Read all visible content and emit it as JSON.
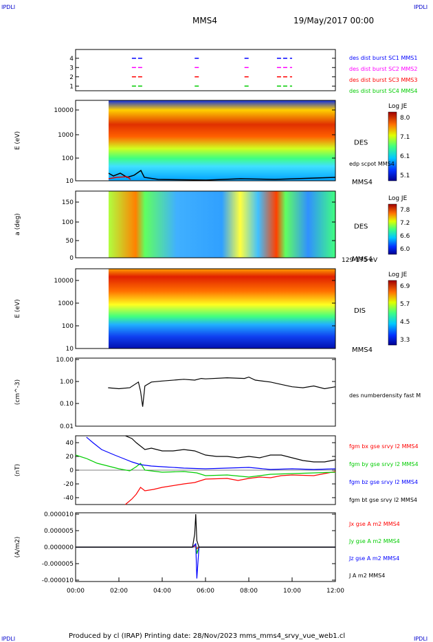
{
  "header": {
    "corner_tl": "IPDLI",
    "corner_tr": "IPDLI",
    "spacecraft": "MMS4",
    "datetime": "19/May/2017 00:00"
  },
  "footer": {
    "text": "Produced by cl (IRAP)   Printing date: 28/Nov/2023   mms_mms4_srvy_vue_web1.cl",
    "corner_bl": "IPDLI",
    "corner_br": "IPDLI"
  },
  "chart_data": [
    {
      "type": "scatter",
      "panel": "burst-availability",
      "yticks": [
        "1",
        "2",
        "3",
        "4"
      ],
      "xlim": [
        "00:00",
        "12:00"
      ],
      "series": [
        {
          "name": "des dist burst SC1 MMS1",
          "level": 4,
          "color": "#0000ff",
          "intervals": [
            [
              2.6,
              3.1
            ],
            [
              5.5,
              5.7
            ],
            [
              7.8,
              8.0
            ],
            [
              9.3,
              9.8
            ],
            [
              9.9,
              10.0
            ]
          ]
        },
        {
          "name": "des dist burst SC2 MMS2",
          "level": 3,
          "color": "#ff00ff",
          "intervals": [
            [
              2.6,
              3.1
            ],
            [
              5.5,
              5.7
            ],
            [
              7.8,
              8.0
            ],
            [
              9.3,
              9.8
            ],
            [
              9.9,
              10.0
            ]
          ]
        },
        {
          "name": "des dist burst SC3 MMS3",
          "level": 2,
          "color": "#ff0000",
          "intervals": [
            [
              2.6,
              3.1
            ],
            [
              5.5,
              5.7
            ],
            [
              7.8,
              8.0
            ],
            [
              9.3,
              9.8
            ],
            [
              9.9,
              10.0
            ]
          ]
        },
        {
          "name": "des dist burst SC4 MMS4",
          "level": 1,
          "color": "#00cc00",
          "intervals": [
            [
              2.6,
              3.1
            ],
            [
              5.5,
              5.7
            ],
            [
              7.8,
              8.0
            ],
            [
              9.3,
              9.8
            ],
            [
              9.9,
              10.0
            ]
          ]
        }
      ]
    },
    {
      "type": "heatmap",
      "panel": "des-energy",
      "ylabel": "E (eV)",
      "yticks": [
        "10000",
        "1000",
        "100",
        "10"
      ],
      "label": "DES",
      "overlay_label": "edp scpot MMS4",
      "sc_label": "MMS4",
      "cbar_title": "Log JE",
      "cbar_ticks": [
        "8.0",
        "7.1",
        "6.1",
        "5.1"
      ],
      "data_start": "01:30"
    },
    {
      "type": "heatmap",
      "panel": "des-pitch-angle",
      "ylabel": "a (deg)",
      "yticks": [
        "150",
        "100",
        "50",
        "0"
      ],
      "label": "DES",
      "sc_label": "MMS4",
      "energy_range": "129-175 eV",
      "cbar_title": "Log JE",
      "cbar_ticks": [
        "7.8",
        "7.2",
        "6.6",
        "6.0"
      ],
      "data_start": "01:30"
    },
    {
      "type": "heatmap",
      "panel": "dis-energy",
      "ylabel": "E (eV)",
      "yticks": [
        "10000",
        "1000",
        "100",
        "10"
      ],
      "label": "DIS",
      "sc_label": "MMS4",
      "cbar_title": "Log JE",
      "cbar_ticks": [
        "6.9",
        "5.7",
        "4.5",
        "3.3"
      ],
      "data_start": "01:30"
    },
    {
      "type": "line",
      "panel": "density",
      "ylabel": "(cm^-3)",
      "yticks": [
        "10.00",
        "1.00",
        "0.10",
        "0.01"
      ],
      "ylim": [
        0.01,
        10
      ],
      "yscale": "log",
      "series": [
        {
          "name": "des numberdensity fast M",
          "color": "#000000",
          "x": [
            1.5,
            2.0,
            2.5,
            2.9,
            3.0,
            3.1,
            3.2,
            3.5,
            4.0,
            5.0,
            5.5,
            5.8,
            6.0,
            7.0,
            7.8,
            8.0,
            8.3,
            9.0,
            9.5,
            10.0,
            10.5,
            11.0,
            11.5,
            12.0
          ],
          "y": [
            0.5,
            0.45,
            0.5,
            0.9,
            0.35,
            0.07,
            0.6,
            0.9,
            1.0,
            1.2,
            1.1,
            1.3,
            1.25,
            1.4,
            1.3,
            1.5,
            1.1,
            0.9,
            0.7,
            0.55,
            0.5,
            0.6,
            0.45,
            0.55
          ]
        }
      ]
    },
    {
      "type": "line",
      "panel": "magnetic-field",
      "ylabel": "(nT)",
      "yticks": [
        "40",
        "20",
        "0",
        "-20",
        "-40"
      ],
      "ylim": [
        -50,
        50
      ],
      "series": [
        {
          "name": "fgm bx gse srvy l2 MMS4",
          "color": "#ff0000",
          "x": [
            2.3,
            2.6,
            2.8,
            3.0,
            3.2,
            3.6,
            4.0,
            5.0,
            5.5,
            6.0,
            7.0,
            7.5,
            8.0,
            8.5,
            9.0,
            9.5,
            10.0,
            11.0,
            12.0
          ],
          "y": [
            -50,
            -42,
            -35,
            -25,
            -30,
            -28,
            -25,
            -20,
            -18,
            -13,
            -12,
            -15,
            -12,
            -10,
            -11,
            -8,
            -7,
            -8,
            -2
          ]
        },
        {
          "name": "fgm by gse srvy l2 MMS4",
          "color": "#00cc00",
          "x": [
            0.0,
            0.5,
            1.0,
            1.5,
            2.0,
            2.5,
            2.8,
            3.0,
            3.2,
            4.0,
            5.0,
            5.6,
            6.0,
            7.0,
            8.0,
            9.0,
            10.0,
            11.0,
            12.0
          ],
          "y": [
            22,
            17,
            10,
            6,
            2,
            -1,
            5,
            10,
            0,
            -3,
            -2,
            -4,
            -8,
            -7,
            -10,
            -6,
            -5,
            -4,
            -3
          ]
        },
        {
          "name": "fgm bz gse srvy l2 MMS4",
          "color": "#0000ff",
          "x": [
            0.5,
            0.8,
            1.2,
            1.8,
            2.2,
            2.6,
            3.0,
            3.5,
            4.0,
            5.0,
            6.0,
            7.0,
            8.0,
            9.0,
            10.0,
            11.0,
            12.0
          ],
          "y": [
            48,
            40,
            30,
            22,
            17,
            12,
            8,
            6,
            5,
            3,
            2,
            3,
            4,
            1,
            2,
            1,
            2
          ]
        },
        {
          "name": "fgm bt gse srvy l2 MMS4",
          "color": "#000000",
          "x": [
            2.3,
            2.6,
            2.8,
            3.0,
            3.2,
            3.5,
            4.0,
            4.5,
            5.0,
            5.5,
            6.0,
            6.5,
            7.0,
            7.5,
            8.0,
            8.5,
            9.0,
            9.5,
            10.0,
            10.5,
            11.0,
            11.5,
            12.0
          ],
          "y": [
            50,
            46,
            40,
            35,
            30,
            32,
            28,
            28,
            30,
            28,
            22,
            20,
            20,
            18,
            20,
            18,
            22,
            22,
            18,
            14,
            12,
            12,
            15
          ]
        }
      ]
    },
    {
      "type": "line",
      "panel": "current-density",
      "ylabel": "(A/m2)",
      "yticks": [
        "0.000010",
        "0.000005",
        "0.000000",
        "-0.000005",
        "-0.000010"
      ],
      "ylim": [
        -1e-05,
        1e-05
      ],
      "xticks": [
        "00:00",
        "02:00",
        "04:00",
        "06:00",
        "08:00",
        "10:00",
        "12:00"
      ],
      "series": [
        {
          "name": "Jx gse A m2 MMS4",
          "color": "#ff0000",
          "x": [
            0,
            5.4,
            5.55,
            5.6,
            5.7,
            12
          ],
          "y": [
            0,
            0,
            5e-07,
            -5e-07,
            0,
            0
          ]
        },
        {
          "name": "Jy gse A m2 MMS4",
          "color": "#00cc00",
          "x": [
            0,
            5.4,
            5.55,
            5.6,
            5.7,
            12
          ],
          "y": [
            0,
            0,
            1e-06,
            -2e-06,
            0,
            0
          ]
        },
        {
          "name": "Jz gse A m2 MMS4",
          "color": "#0000ff",
          "x": [
            0,
            5.4,
            5.55,
            5.6,
            5.7,
            12
          ],
          "y": [
            0,
            0,
            1e-06,
            -9.5e-06,
            0,
            0
          ]
        },
        {
          "name": "J A m2 MMS4",
          "color": "#000000",
          "x": [
            0,
            5.4,
            5.5,
            5.55,
            5.6,
            5.7,
            12
          ],
          "y": [
            0,
            0,
            4e-06,
            1e-05,
            2e-06,
            0,
            0
          ]
        }
      ]
    }
  ]
}
